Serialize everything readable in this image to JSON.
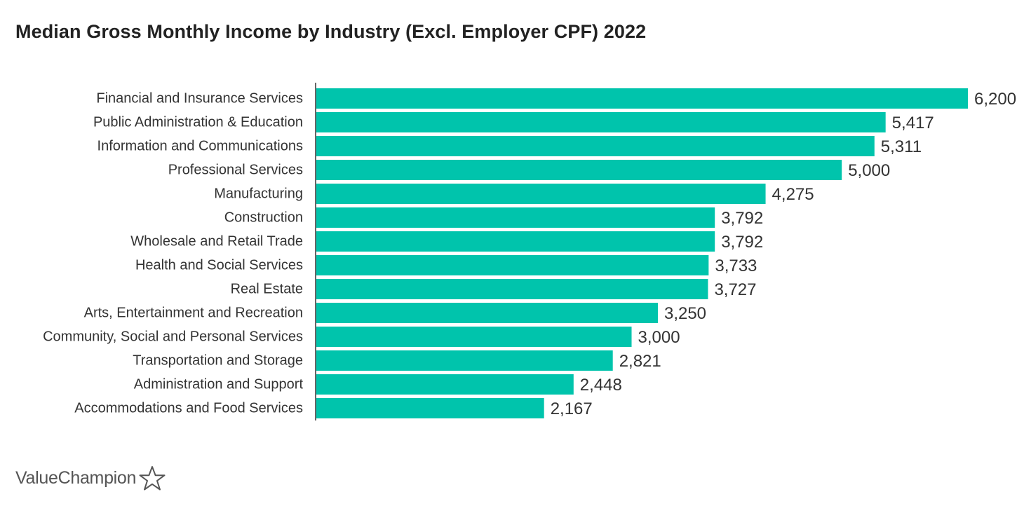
{
  "title": "Median Gross Monthly Income by Industry (Excl. Employer CPF) 2022",
  "brand": {
    "name": "ValueChampion",
    "icon": "star-outline-icon"
  },
  "colors": {
    "bar": "#00C4AC",
    "axis": "#333333",
    "text": "#333333"
  },
  "chart_data": {
    "type": "bar",
    "orientation": "horizontal",
    "title": "Median Gross Monthly Income by Industry (Excl. Employer CPF) 2022",
    "xlabel": "",
    "ylabel": "",
    "xlim": [
      0,
      6200
    ],
    "grid": false,
    "legend": "none",
    "categories": [
      "Financial and Insurance Services",
      "Public Administration & Education",
      "Information and Communications",
      "Professional Services",
      "Manufacturing",
      "Construction",
      "Wholesale and Retail Trade",
      "Health and Social Services",
      "Real Estate",
      "Arts, Entertainment and Recreation",
      "Community, Social and Personal Services",
      "Transportation and Storage",
      "Administration and Support",
      "Accommodations and Food Services"
    ],
    "values": [
      6200,
      5417,
      5311,
      5000,
      4275,
      3792,
      3792,
      3733,
      3727,
      3250,
      3000,
      2821,
      2448,
      2167
    ],
    "value_labels": [
      "6,200",
      "5,417",
      "5,311",
      "5,000",
      "4,275",
      "3,792",
      "3,792",
      "3,733",
      "3,727",
      "3,250",
      "3,000",
      "2,821",
      "2,448",
      "2,167"
    ]
  }
}
